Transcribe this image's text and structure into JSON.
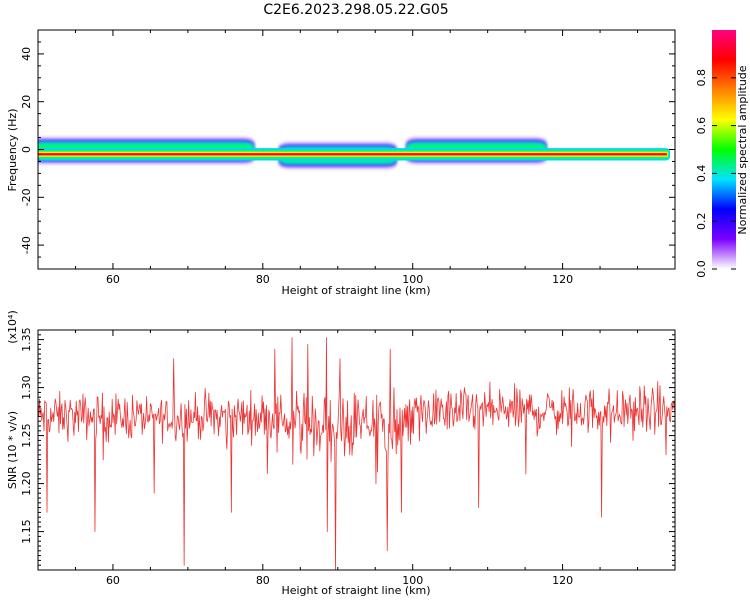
{
  "title": "C2E6.2023.298.05.22.G05",
  "chart_data": [
    {
      "type": "heatmap",
      "xlabel": "Height of straight line (km)",
      "ylabel": "Frequency (Hz)",
      "xlim": [
        50,
        135
      ],
      "ylim": [
        -50,
        50
      ],
      "x_ticks": [
        60,
        80,
        100,
        120
      ],
      "y_ticks": [
        -40,
        -20,
        0,
        20,
        40
      ],
      "colorbar": {
        "label": "Normalized spectral amplitude",
        "range": [
          0,
          1
        ],
        "ticks": [
          "0.0",
          "0.2",
          "0.4",
          "0.6",
          "0.8"
        ],
        "colors": [
          "#ffffff",
          "#7b00ff",
          "#0000ff",
          "#00e5ff",
          "#00ff00",
          "#ffff00",
          "#ff8000",
          "#ff0000",
          "#ff0080"
        ]
      },
      "peak_line": {
        "frequency": -2,
        "color": "#ff0000"
      },
      "spread_segments": [
        {
          "x0": 50,
          "x1": 78,
          "lower": -4,
          "upper": 3
        },
        {
          "x0": 83,
          "x1": 97,
          "lower": -6,
          "upper": 1
        },
        {
          "x0": 100,
          "x1": 117,
          "lower": -4,
          "upper": 3
        }
      ]
    },
    {
      "type": "line",
      "xlabel": "Height of straight line (km)",
      "ylabel": "SNR (10 * v/v)",
      "scale_label": "(x10⁴)",
      "xlim": [
        50,
        135
      ],
      "ylim": [
        1.11,
        1.36
      ],
      "x_ticks": [
        60,
        80,
        100,
        120
      ],
      "y_ticks": [
        "1.15",
        "1.20",
        "1.25",
        "1.30",
        "1.35"
      ],
      "series_color": "#ee3333",
      "sample_step_km": 0.1,
      "baseline": 1.27,
      "noise_amplitude": 0.018,
      "dips": [
        {
          "x": 51.2,
          "y": 1.17
        },
        {
          "x": 57.6,
          "y": 1.15
        },
        {
          "x": 65.5,
          "y": 1.19
        },
        {
          "x": 69.5,
          "y": 1.115
        },
        {
          "x": 75.8,
          "y": 1.17
        },
        {
          "x": 84.0,
          "y": 1.22
        },
        {
          "x": 86.0,
          "y": 1.17
        },
        {
          "x": 88.6,
          "y": 1.15
        },
        {
          "x": 89.7,
          "y": 1.11
        },
        {
          "x": 95.1,
          "y": 1.2
        },
        {
          "x": 96.6,
          "y": 1.13
        },
        {
          "x": 98.5,
          "y": 1.17
        },
        {
          "x": 108.8,
          "y": 1.175
        },
        {
          "x": 115.1,
          "y": 1.21
        },
        {
          "x": 125.2,
          "y": 1.165
        },
        {
          "x": 133.8,
          "y": 1.23
        }
      ],
      "peaks": [
        {
          "x": 68.1,
          "y": 1.33
        },
        {
          "x": 81.6,
          "y": 1.34
        },
        {
          "x": 83.9,
          "y": 1.352
        },
        {
          "x": 86.0,
          "y": 1.345
        },
        {
          "x": 88.5,
          "y": 1.352
        },
        {
          "x": 90.3,
          "y": 1.33
        },
        {
          "x": 97.0,
          "y": 1.34
        }
      ]
    }
  ]
}
